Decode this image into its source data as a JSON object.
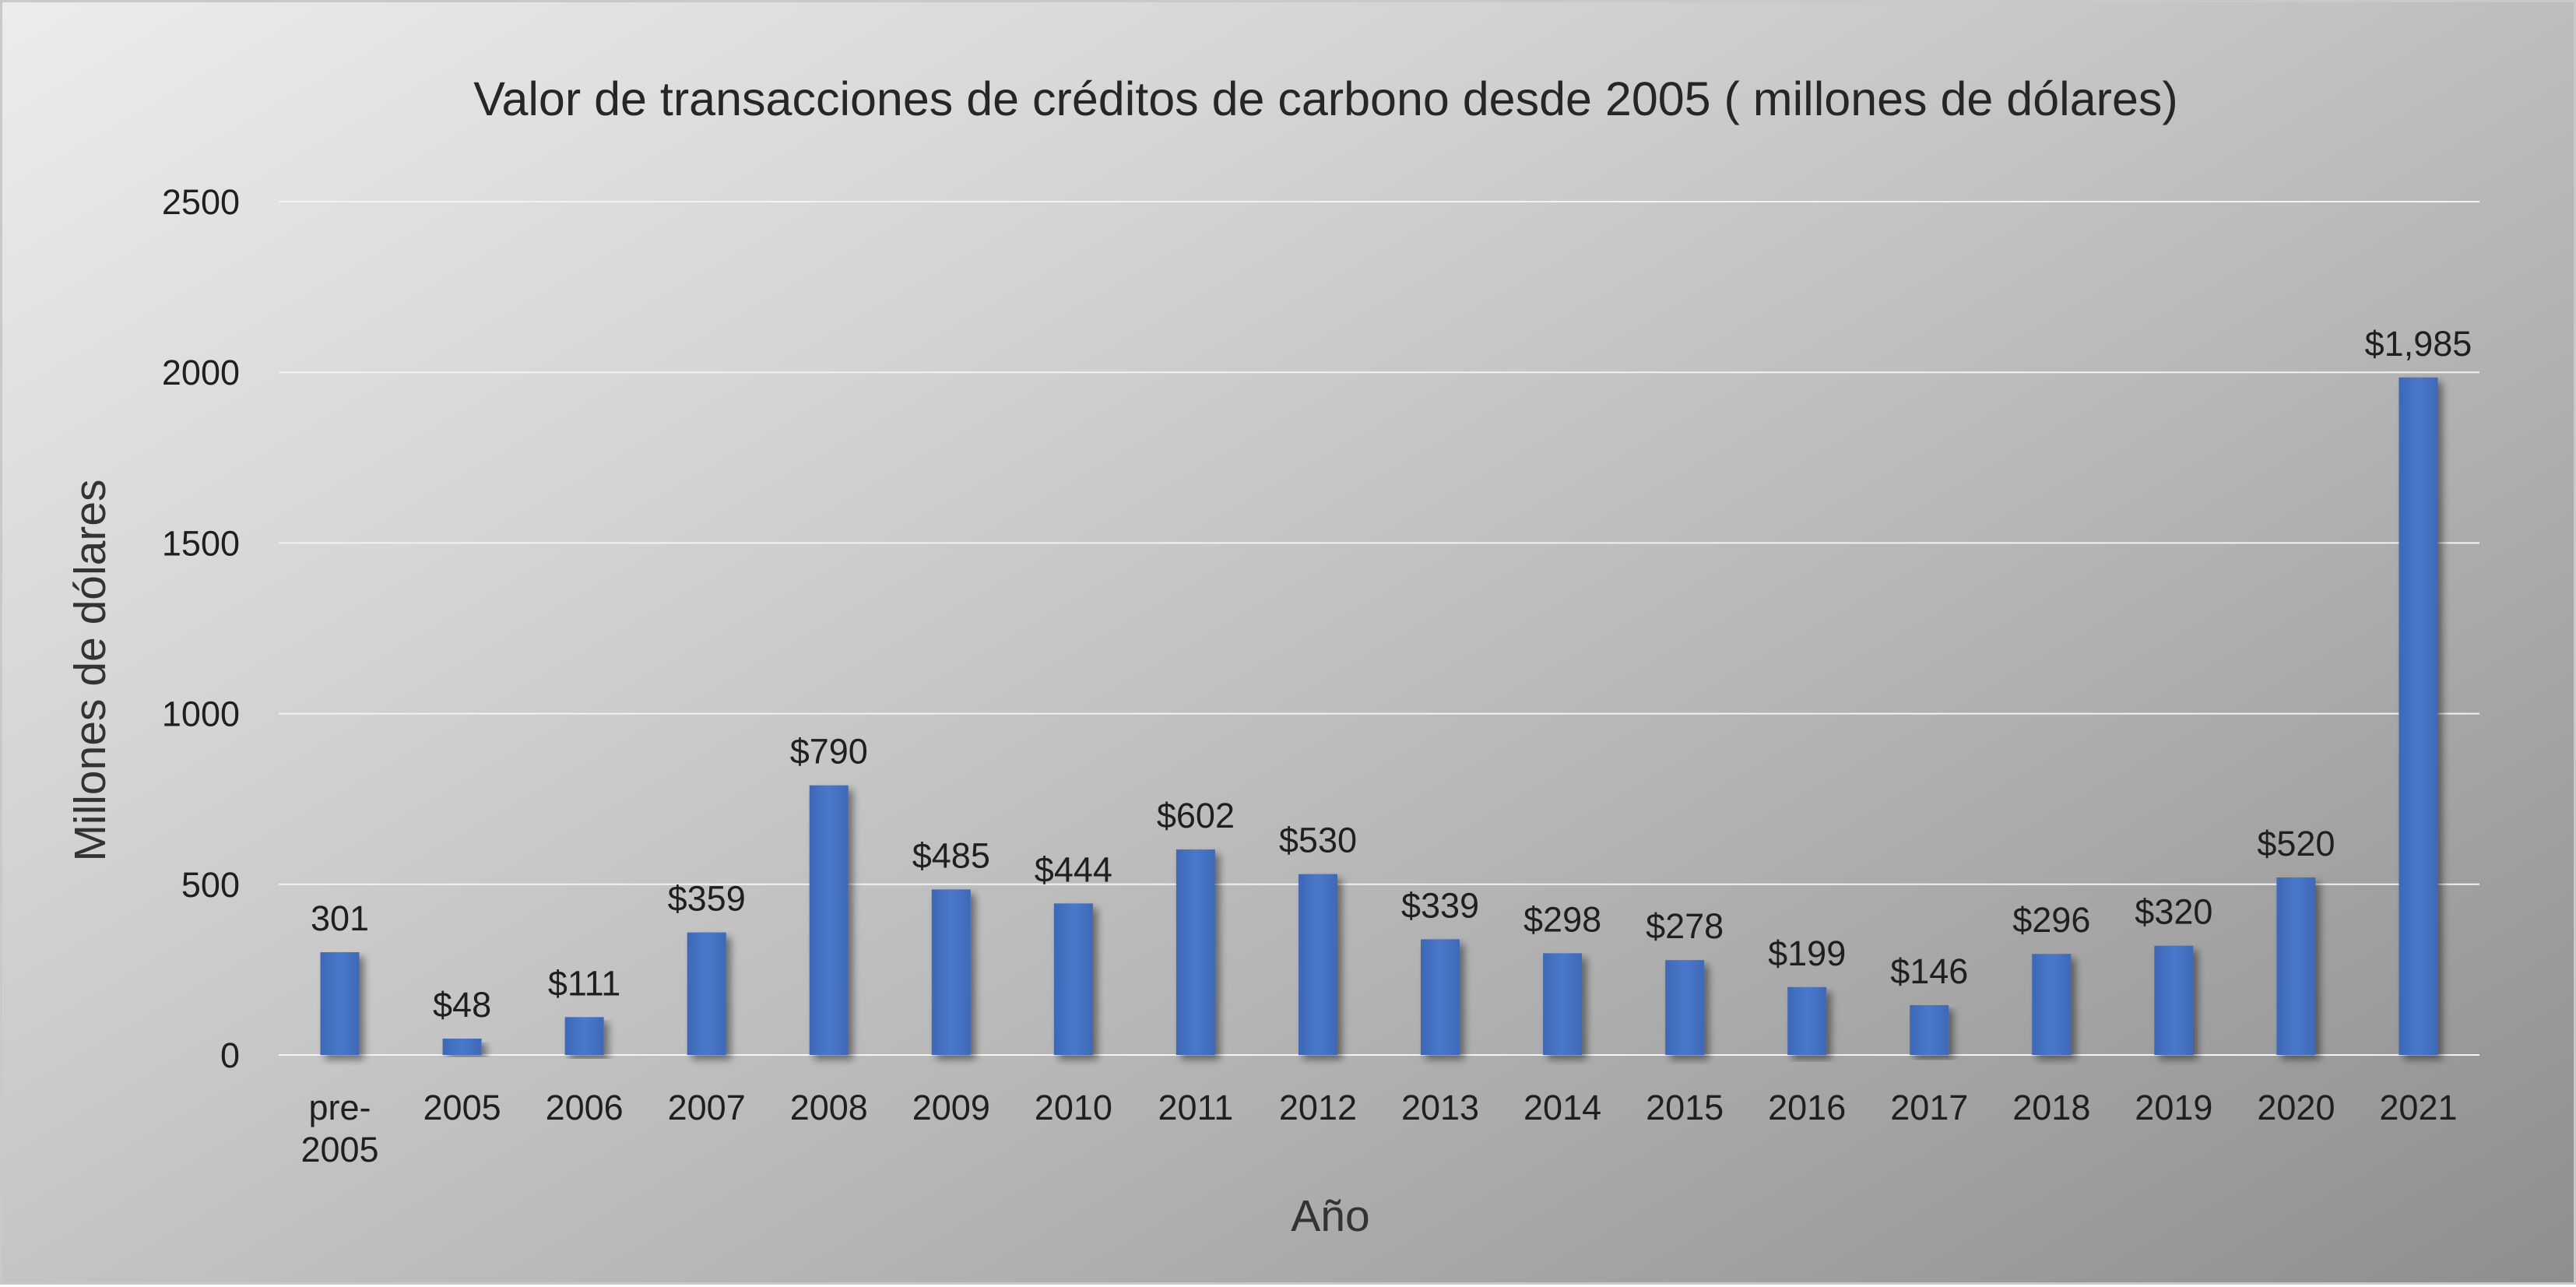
{
  "chart_data": {
    "type": "bar",
    "title": "Valor de transacciones de créditos de carbono desde 2005 ( millones de dólares)",
    "xlabel": "Año",
    "ylabel": "Millones de dólares",
    "ylim": [
      0,
      2500
    ],
    "yticks": [
      0,
      500,
      1000,
      1500,
      2000,
      2500
    ],
    "grid": true,
    "legend": "none",
    "bar_color": "#4472C4",
    "categories": [
      "pre-2005",
      "2005",
      "2006",
      "2007",
      "2008",
      "2009",
      "2010",
      "2011",
      "2012",
      "2013",
      "2014",
      "2015",
      "2016",
      "2017",
      "2018",
      "2019",
      "2020",
      "2021"
    ],
    "category_lines": [
      [
        "pre-",
        "2005"
      ],
      [
        "2005"
      ],
      [
        "2006"
      ],
      [
        "2007"
      ],
      [
        "2008"
      ],
      [
        "2009"
      ],
      [
        "2010"
      ],
      [
        "2011"
      ],
      [
        "2012"
      ],
      [
        "2013"
      ],
      [
        "2014"
      ],
      [
        "2015"
      ],
      [
        "2016"
      ],
      [
        "2017"
      ],
      [
        "2018"
      ],
      [
        "2019"
      ],
      [
        "2020"
      ],
      [
        "2021"
      ]
    ],
    "values": [
      301,
      48,
      111,
      359,
      790,
      485,
      444,
      602,
      530,
      339,
      298,
      278,
      199,
      146,
      296,
      320,
      520,
      1985
    ],
    "data_labels": [
      "301",
      "$48",
      "$111",
      "$359",
      "$790",
      "$485",
      "$444",
      "$602",
      "$530",
      "$339",
      "$298",
      "$278",
      "$199",
      "$146",
      "$296",
      "$320",
      "$520",
      "$1,985"
    ]
  }
}
